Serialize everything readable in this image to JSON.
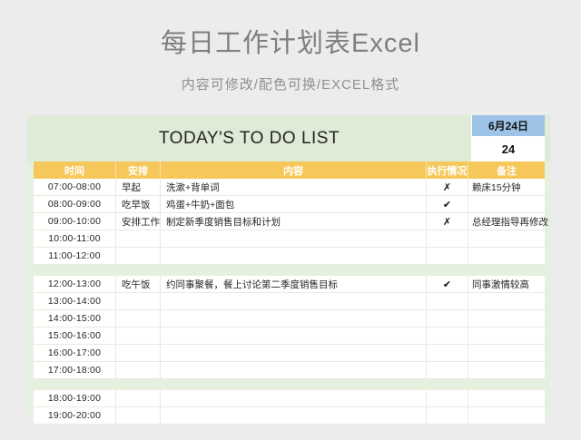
{
  "page": {
    "title": "每日工作计划表Excel",
    "subtitle": "内容可修改/配色可换/EXCEL格式"
  },
  "sheet": {
    "title": "TODAY'S TO DO LIST",
    "date": {
      "month_day": "6月24日",
      "day": "24"
    },
    "columns": [
      "时间",
      "安排",
      "内容",
      "执行情况",
      "备注"
    ],
    "rows": [
      {
        "time": "07:00-08:00",
        "plan": "早起",
        "content": "洗漱+背单词",
        "status": "✗",
        "note": "赖床15分钟"
      },
      {
        "time": "08:00-09:00",
        "plan": "吃早饭",
        "content": "鸡蛋+牛奶+面包",
        "status": "✔",
        "note": ""
      },
      {
        "time": "09:00-10:00",
        "plan": "安排工作",
        "content": "制定新季度销售目标和计划",
        "status": "✗",
        "note": "总经理指导再修改"
      },
      {
        "time": "10:00-11:00",
        "plan": "",
        "content": "",
        "status": "",
        "note": ""
      },
      {
        "time": "11:00-12:00",
        "plan": "",
        "content": "",
        "status": "",
        "note": ""
      },
      {
        "separator": true
      },
      {
        "time": "12:00-13:00",
        "plan": "吃午饭",
        "content": "约同事聚餐，餐上讨论第二季度销售目标",
        "status": "✔",
        "note": "同事激情较高"
      },
      {
        "time": "13:00-14:00",
        "plan": "",
        "content": "",
        "status": "",
        "note": ""
      },
      {
        "time": "14:00-15:00",
        "plan": "",
        "content": "",
        "status": "",
        "note": ""
      },
      {
        "time": "15:00-16:00",
        "plan": "",
        "content": "",
        "status": "",
        "note": ""
      },
      {
        "time": "16:00-17:00",
        "plan": "",
        "content": "",
        "status": "",
        "note": ""
      },
      {
        "time": "17:00-18:00",
        "plan": "",
        "content": "",
        "status": "",
        "note": ""
      },
      {
        "separator": true
      },
      {
        "time": "18:00-19:00",
        "plan": "",
        "content": "",
        "status": "",
        "note": ""
      },
      {
        "time": "19:00-20:00",
        "plan": "",
        "content": "",
        "status": "",
        "note": ""
      }
    ],
    "colors": {
      "page_background": "#ececec",
      "title_gray": "#7f7f7f",
      "band_green": "#dfebd6",
      "frame_green": "#e6f0de",
      "header_yellow": "#f6c85b",
      "date_blue": "#9dc3e6",
      "cell_white": "#ffffff"
    }
  }
}
